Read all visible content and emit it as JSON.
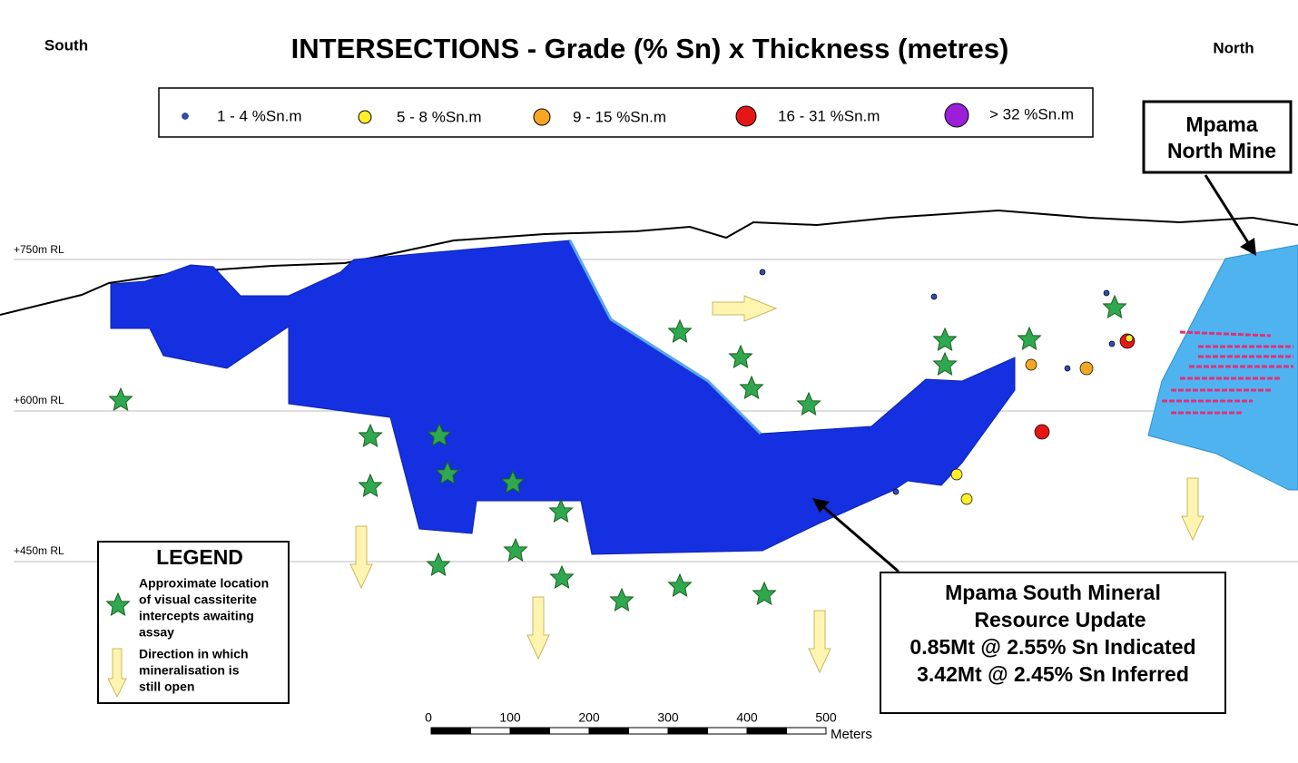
{
  "title": "INTERSECTIONS - Grade (% Sn) x Thickness (metres)",
  "south": "South",
  "north": "North",
  "grade_legend": [
    "1 - 4 %Sn.m",
    "5 - 8 %Sn.m",
    "9 - 15 %Sn.m",
    "16 - 31 %Sn.m",
    "> 32 %Sn.m"
  ],
  "rl_labels": [
    "+750m RL",
    "+600m RL",
    "+450m RL"
  ],
  "mine_label": [
    "Mpama",
    "North Mine"
  ],
  "legend": {
    "title": "LEGEND",
    "star_text": [
      "Approximate location",
      "of visual cassiterite",
      "intercepts awaiting",
      "assay"
    ],
    "arrow_text": [
      "Direction in which",
      "mineralisation is",
      "still open"
    ]
  },
  "resource_box": [
    "Mpama South Mineral",
    "Resource Update",
    "0.85Mt @ 2.55% Sn Indicated",
    "3.42Mt @ 2.45% Sn Inferred"
  ],
  "scale_bar": {
    "labels": [
      "0",
      "100",
      "200",
      "300",
      "400",
      "500"
    ],
    "unit": "Meters"
  }
}
